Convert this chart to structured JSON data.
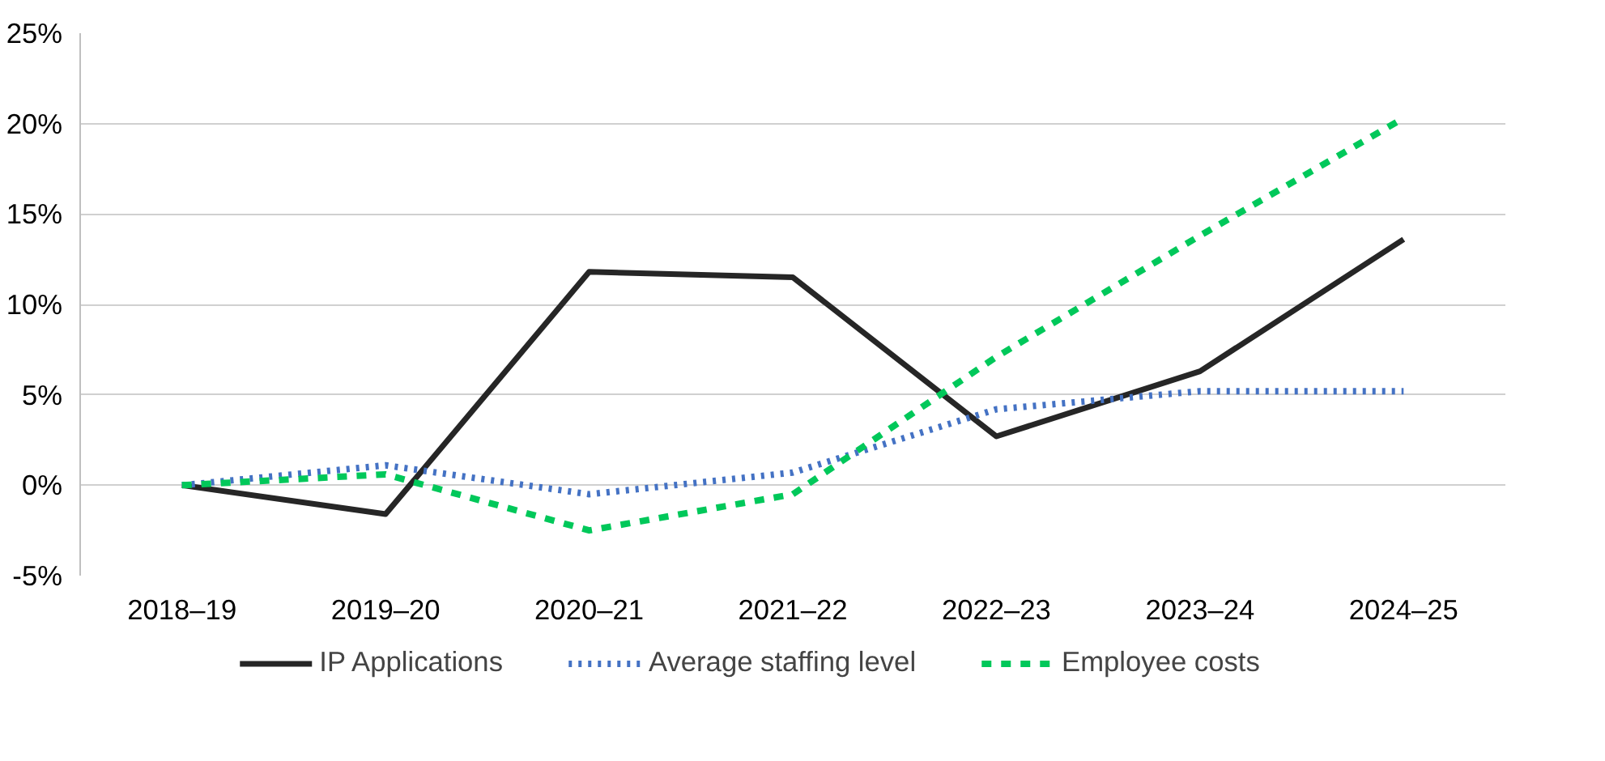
{
  "chart_data": {
    "type": "line",
    "categories": [
      "2018–19",
      "2019–20",
      "2020–21",
      "2021–22",
      "2022–23",
      "2023–24",
      "2024–25"
    ],
    "series": [
      {
        "name": "IP Applications",
        "color": "#262626",
        "line_style": "solid",
        "values": [
          0,
          -1.6,
          11.8,
          11.5,
          2.7,
          6.3,
          13.6
        ]
      },
      {
        "name": "Average staffing level",
        "color": "#4472c4",
        "line_style": "dotted",
        "values": [
          0,
          1.1,
          -0.5,
          0.7,
          4.2,
          5.2,
          5.2
        ]
      },
      {
        "name": "Employee costs",
        "color": "#00c85a",
        "line_style": "dashed",
        "values": [
          0,
          0.6,
          -2.5,
          -0.5,
          7.1,
          13.8,
          20.3
        ]
      }
    ],
    "ylim": [
      -5,
      25
    ],
    "yticks": [
      {
        "value": -5,
        "label": "-5%"
      },
      {
        "value": 0,
        "label": "0%"
      },
      {
        "value": 5,
        "label": "5%"
      },
      {
        "value": 10,
        "label": "10%"
      },
      {
        "value": 15,
        "label": "15%"
      },
      {
        "value": 20,
        "label": "20%"
      },
      {
        "value": 25,
        "label": "25%"
      }
    ],
    "grid": "y",
    "legend": "bottom",
    "marker": "none"
  }
}
